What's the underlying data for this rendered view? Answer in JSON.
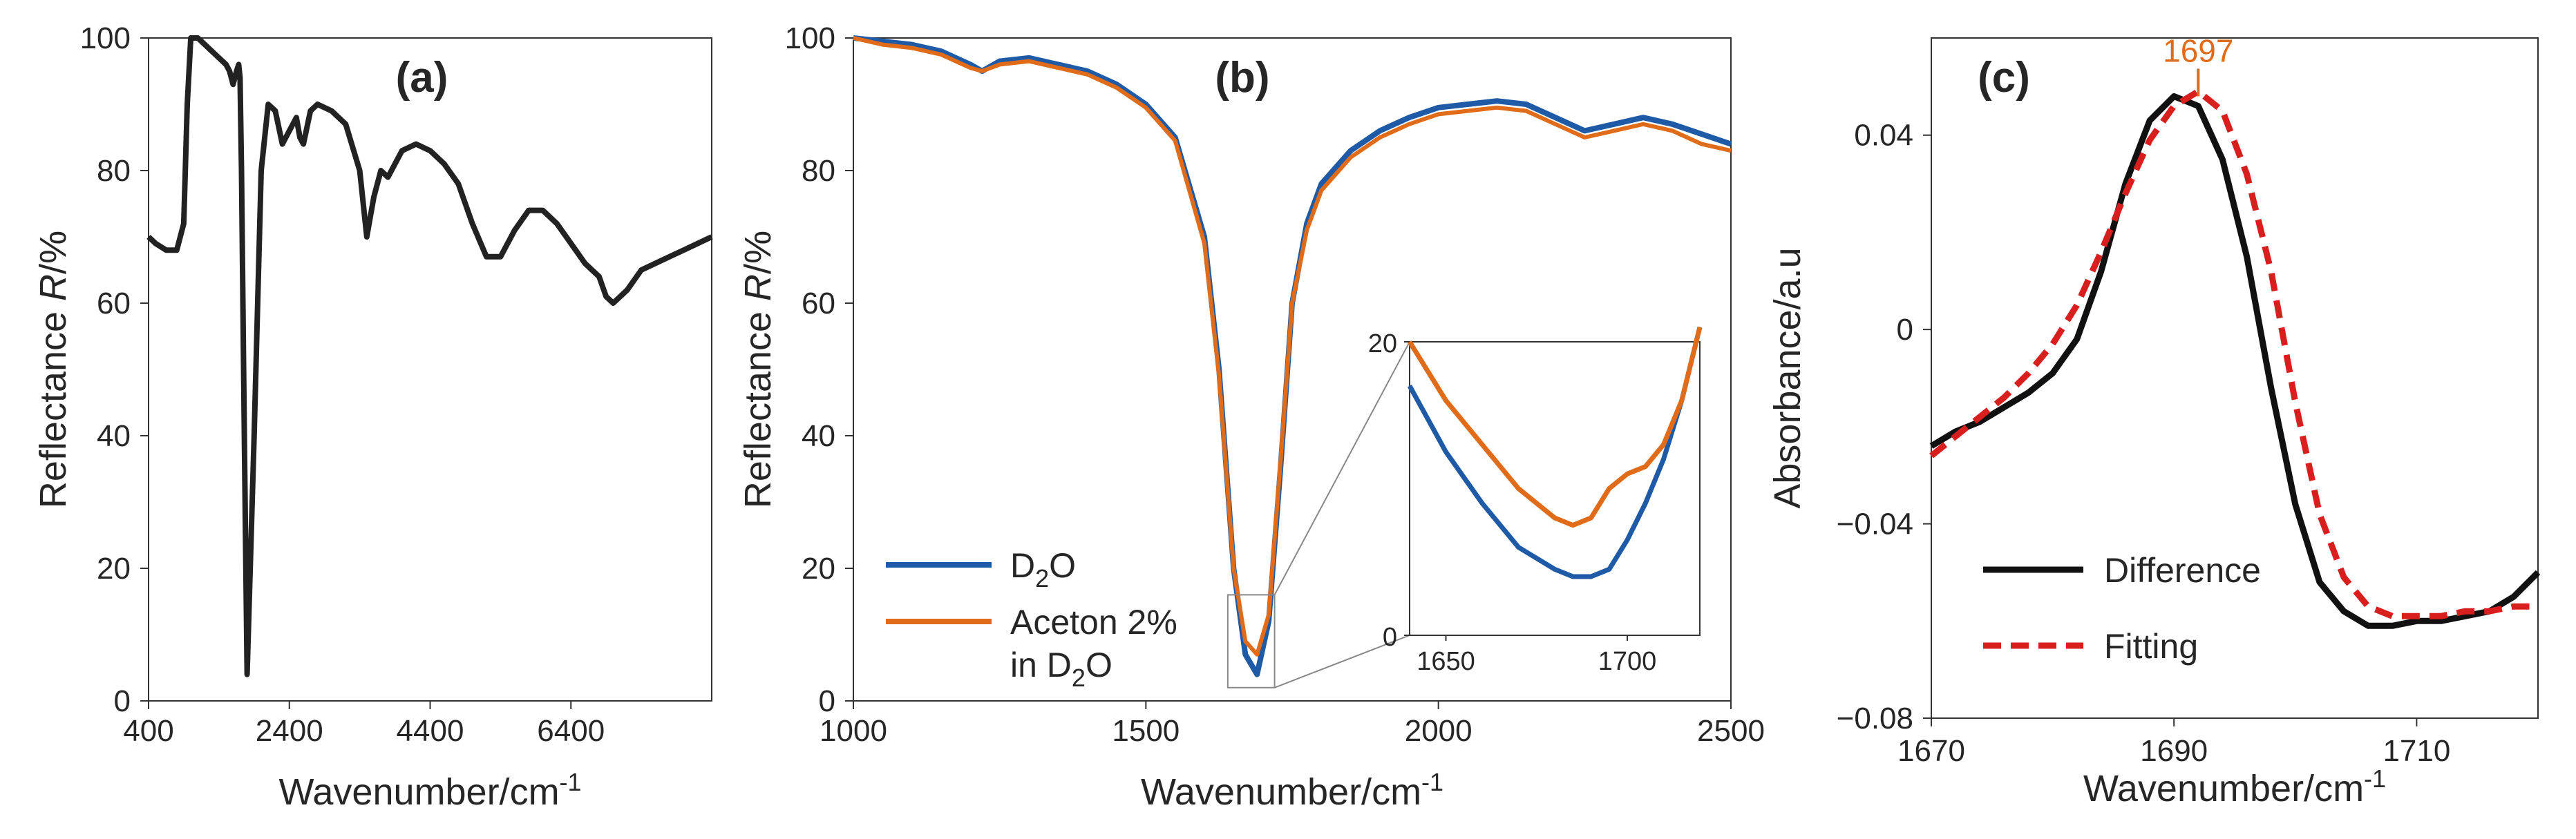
{
  "chart_data": [
    {
      "panel": "a",
      "type": "line",
      "panel_label": "(a)",
      "title": "",
      "xlabel": "Wavenumber/cm",
      "xlabel_sup": "-1",
      "ylabel_prefix": "Reflectance ",
      "ylabel_var": "R",
      "ylabel_suffix": "/%",
      "xlim": [
        400,
        8400
      ],
      "ylim": [
        0,
        100
      ],
      "xticks": [
        400,
        2400,
        4400,
        6400
      ],
      "xtick_labels": [
        "400",
        "2400",
        "4400",
        "6400"
      ],
      "yticks": [
        0,
        20,
        40,
        60,
        80,
        100
      ],
      "ytick_labels": [
        "0",
        "20",
        "40",
        "60",
        "80",
        "100"
      ],
      "series": [
        {
          "name": "Reflectance",
          "color": "#222222",
          "x": [
            400,
            500,
            650,
            800,
            900,
            950,
            1000,
            1100,
            1200,
            1300,
            1400,
            1500,
            1550,
            1600,
            1650,
            1680,
            1700,
            1720,
            1760,
            1800,
            1900,
            2000,
            2100,
            2200,
            2300,
            2400,
            2500,
            2550,
            2600,
            2700,
            2800,
            3000,
            3200,
            3400,
            3500,
            3600,
            3700,
            3800,
            3900,
            4000,
            4200,
            4400,
            4600,
            4800,
            5000,
            5200,
            5400,
            5600,
            5800,
            6000,
            6200,
            6400,
            6600,
            6800,
            6900,
            7000,
            7200,
            7400,
            7600,
            7800,
            8000,
            8200,
            8400
          ],
          "y": [
            70,
            69,
            68,
            68,
            72,
            90,
            100,
            100,
            99,
            98,
            97,
            96,
            95,
            93,
            95,
            96,
            94,
            80,
            40,
            4,
            40,
            80,
            90,
            89,
            84,
            86,
            88,
            85,
            84,
            89,
            90,
            89,
            87,
            80,
            70,
            76,
            80,
            79,
            81,
            83,
            84,
            83,
            81,
            78,
            72,
            67,
            67,
            71,
            74,
            74,
            72,
            69,
            66,
            64,
            61,
            60,
            62,
            65,
            66,
            67,
            68,
            69,
            70
          ]
        }
      ]
    },
    {
      "panel": "b",
      "type": "line",
      "panel_label": "(b)",
      "title": "",
      "xlabel": "Wavenumber/cm",
      "xlabel_sup": "-1",
      "ylabel_prefix": "Reflectance ",
      "ylabel_var": "R",
      "ylabel_suffix": "/%",
      "xlim": [
        1000,
        2500
      ],
      "ylim": [
        0,
        100
      ],
      "xticks": [
        1000,
        1500,
        2000,
        2500
      ],
      "xtick_labels": [
        "1000",
        "1500",
        "2000",
        "2500"
      ],
      "yticks": [
        0,
        20,
        40,
        60,
        80,
        100
      ],
      "ytick_labels": [
        "0",
        "20",
        "40",
        "60",
        "80",
        "100"
      ],
      "legend_position": "bottom-left",
      "series": [
        {
          "name": "D2O",
          "legend_main": "D",
          "legend_sub": "2",
          "legend_after": "O",
          "color": "#1f5aa6",
          "x": [
            1000,
            1050,
            1100,
            1150,
            1200,
            1220,
            1250,
            1300,
            1350,
            1400,
            1450,
            1500,
            1550,
            1600,
            1625,
            1650,
            1670,
            1690,
            1710,
            1730,
            1750,
            1775,
            1800,
            1850,
            1900,
            1950,
            2000,
            2050,
            2100,
            2150,
            2200,
            2250,
            2300,
            2350,
            2400,
            2450,
            2500
          ],
          "y": [
            100,
            99.5,
            99,
            98,
            96,
            95,
            96.5,
            97,
            96,
            95,
            93,
            90,
            85,
            70,
            50,
            20,
            7,
            4,
            12,
            35,
            60,
            72,
            78,
            83,
            86,
            88,
            89.5,
            90,
            90.5,
            90,
            88,
            86,
            87,
            88,
            87,
            85.5,
            84
          ]
        },
        {
          "name": "Aceton 2% in D2O",
          "legend_line1": "Aceton 2%",
          "legend_line2_main": "in D",
          "legend_line2_sub": "2",
          "legend_line2_after": "O",
          "color": "#e06c1a",
          "x": [
            1000,
            1050,
            1100,
            1150,
            1200,
            1220,
            1250,
            1300,
            1350,
            1400,
            1450,
            1500,
            1550,
            1600,
            1625,
            1650,
            1670,
            1690,
            1710,
            1730,
            1750,
            1775,
            1800,
            1850,
            1900,
            1950,
            2000,
            2050,
            2100,
            2150,
            2200,
            2250,
            2300,
            2350,
            2400,
            2450,
            2500
          ],
          "y": [
            100,
            99,
            98.5,
            97.5,
            95.5,
            95,
            96,
            96.5,
            95.5,
            94.5,
            92.5,
            89.5,
            84.5,
            69,
            49,
            20,
            9,
            7,
            13,
            36,
            60,
            71,
            77,
            82,
            85,
            87,
            88.5,
            89,
            89.5,
            89,
            87,
            85,
            86,
            87,
            86,
            84,
            83
          ]
        }
      ],
      "inset": {
        "xlim": [
          1640,
          1720
        ],
        "ylim": [
          0,
          20
        ],
        "xticks": [
          1650,
          1700
        ],
        "xtick_labels": [
          "1650",
          "1700"
        ],
        "yticks": [
          0,
          20
        ],
        "ytick_labels": [
          "0",
          "20"
        ],
        "zoom_box": {
          "x": [
            1640,
            1720
          ],
          "y": [
            2,
            16
          ]
        },
        "series": [
          {
            "name": "D2O",
            "color": "#1f5aa6",
            "x": [
              1640,
              1650,
              1660,
              1670,
              1680,
              1685,
              1690,
              1695,
              1700,
              1705,
              1710,
              1715,
              1720
            ],
            "y": [
              17,
              12.5,
              9,
              6,
              4.5,
              4,
              4,
              4.5,
              6.5,
              9,
              12,
              16,
              21
            ]
          },
          {
            "name": "Aceton 2% in D2O",
            "color": "#e06c1a",
            "x": [
              1640,
              1650,
              1660,
              1670,
              1680,
              1685,
              1690,
              1695,
              1700,
              1705,
              1710,
              1715,
              1720
            ],
            "y": [
              20,
              16,
              13,
              10,
              8,
              7.5,
              8,
              10,
              11,
              11.5,
              13,
              16,
              21
            ]
          }
        ]
      }
    },
    {
      "panel": "c",
      "type": "line",
      "panel_label": "(c)",
      "title": "",
      "xlabel": "Wavenumber/cm",
      "xlabel_sup": "-1",
      "ylabel": "Absorbance/a.u",
      "xlim": [
        1670,
        1720
      ],
      "ylim": [
        -0.08,
        0.06
      ],
      "xticks": [
        1670,
        1690,
        1710
      ],
      "xtick_labels": [
        "1670",
        "1690",
        "1710"
      ],
      "yticks": [
        -0.08,
        -0.04,
        0,
        0.04
      ],
      "ytick_labels": [
        "−0.08",
        "−0.04",
        "0",
        "0.04"
      ],
      "legend_position": "bottom-left",
      "annotation": {
        "text": "1697",
        "x": 1692,
        "y": 0.048,
        "color": "#e06c1a"
      },
      "series": [
        {
          "name": "Difference",
          "style": "solid",
          "color": "#111111",
          "x": [
            1670,
            1672,
            1674,
            1676,
            1678,
            1680,
            1682,
            1684,
            1686,
            1688,
            1690,
            1692,
            1694,
            1696,
            1698,
            1700,
            1702,
            1704,
            1706,
            1708,
            1710,
            1712,
            1714,
            1716,
            1718,
            1720
          ],
          "y": [
            -0.024,
            -0.021,
            -0.019,
            -0.016,
            -0.013,
            -0.009,
            -0.002,
            0.012,
            0.03,
            0.043,
            0.048,
            0.046,
            0.035,
            0.015,
            -0.012,
            -0.036,
            -0.052,
            -0.058,
            -0.061,
            -0.061,
            -0.06,
            -0.06,
            -0.059,
            -0.058,
            -0.055,
            -0.05
          ]
        },
        {
          "name": "Fitting",
          "style": "dashed",
          "color": "#d91e1e",
          "x": [
            1670,
            1672,
            1674,
            1676,
            1678,
            1680,
            1682,
            1684,
            1686,
            1688,
            1690,
            1692,
            1694,
            1696,
            1698,
            1700,
            1702,
            1704,
            1706,
            1708,
            1710,
            1712,
            1714,
            1716,
            1718,
            1720
          ],
          "y": [
            -0.026,
            -0.022,
            -0.018,
            -0.014,
            -0.009,
            -0.003,
            0.005,
            0.016,
            0.028,
            0.039,
            0.046,
            0.049,
            0.045,
            0.032,
            0.012,
            -0.015,
            -0.038,
            -0.051,
            -0.057,
            -0.059,
            -0.059,
            -0.059,
            -0.058,
            -0.058,
            -0.057,
            -0.057
          ]
        }
      ]
    }
  ]
}
